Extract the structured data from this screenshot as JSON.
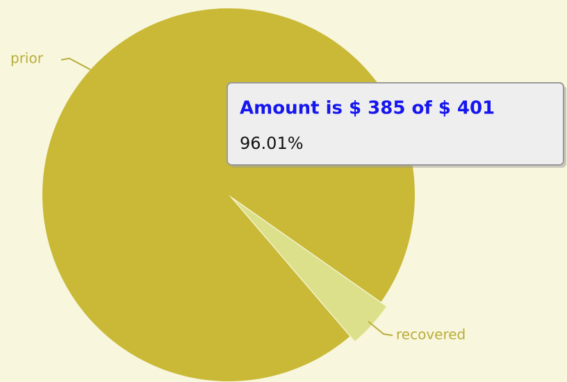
{
  "chart_data": {
    "type": "pie",
    "categories": [
      "prior",
      "recovered"
    ],
    "values": [
      385,
      16
    ],
    "colors": [
      "#c9b937",
      "#dde08a"
    ],
    "tooltip": {
      "title": "Amount is $ 385 of $ 401",
      "text": "96.01%"
    }
  }
}
